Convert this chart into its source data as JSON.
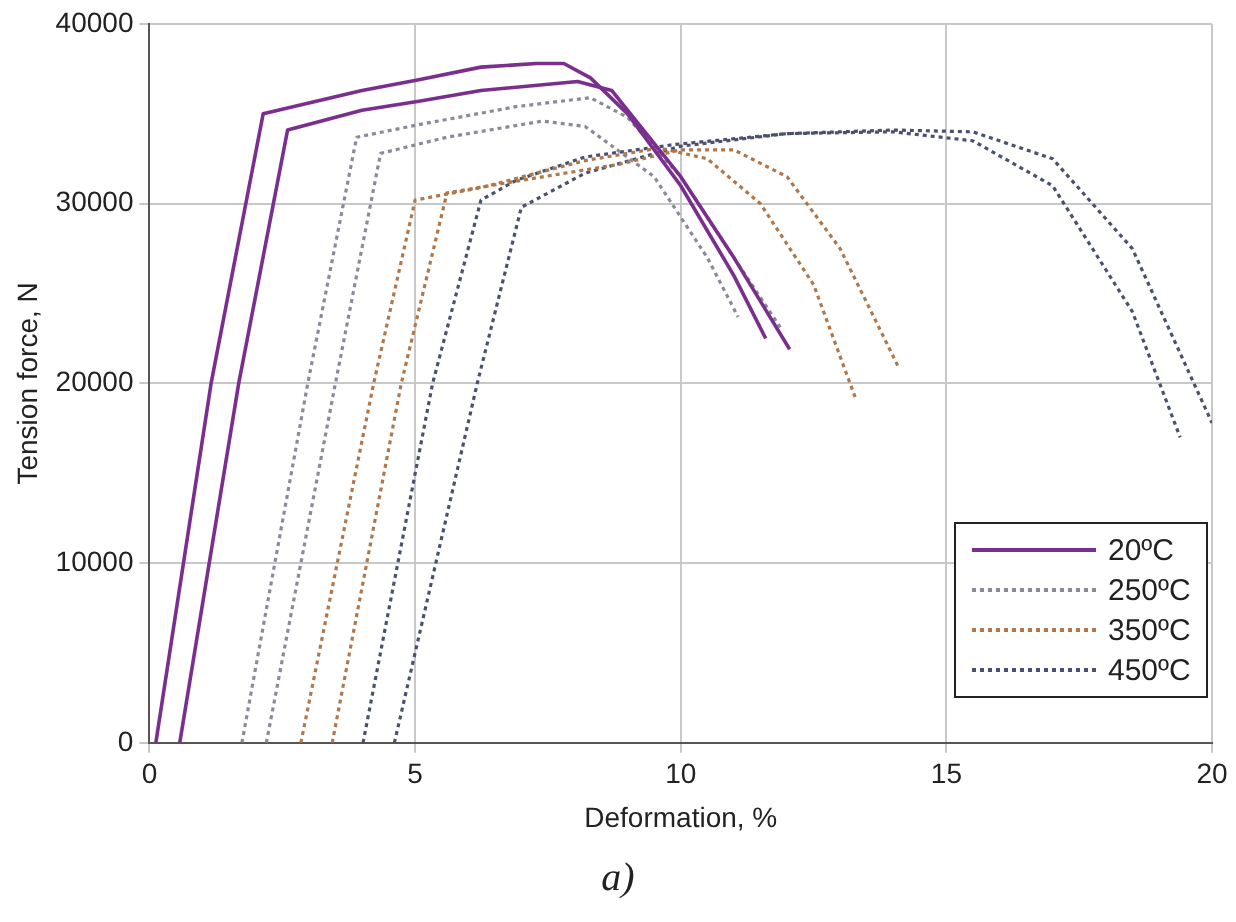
{
  "chart_data": {
    "type": "line",
    "xlabel": "Deformation, %",
    "ylabel": "Tension force, N",
    "annotations": [
      "a)"
    ],
    "xlim": [
      0,
      20
    ],
    "xticks": [
      0,
      5,
      10,
      15,
      20
    ],
    "ylim": [
      0,
      40000
    ],
    "yticks": [
      0,
      10000,
      20000,
      30000,
      40000
    ],
    "grid": true,
    "legend": "bottom right",
    "marker": "none",
    "series": [
      {
        "name": "20ºC",
        "color": "#7a2e8e",
        "line_style": "solid",
        "x": [
          0.12,
          1.16,
          2.14,
          4.0,
          5.07,
          6.24,
          7.28,
          7.8,
          8.3,
          9,
          10,
          11,
          11.6
        ],
        "values": [
          0,
          20000,
          35000,
          36300,
          36900,
          37600,
          37800,
          37800,
          37000,
          35000,
          31000,
          26000,
          22500
        ]
      },
      {
        "color": "#7a2e8e",
        "line_style": "solid",
        "x": [
          0.57,
          1.68,
          2.6,
          4.0,
          5.07,
          6.24,
          8.06,
          8.7,
          10,
          11,
          12.05
        ],
        "values": [
          0,
          20000,
          34100,
          35200,
          35700,
          36300,
          36800,
          36300,
          31500,
          27000,
          21900
        ]
      },
      {
        "name": "250ºC",
        "color": "#8a8a9a",
        "line_style": "dotted",
        "x": [
          1.74,
          2.98,
          3.9,
          5.07,
          6.9,
          8.3,
          9,
          10,
          11,
          11.9
        ],
        "values": [
          0,
          20000,
          33700,
          34400,
          35400,
          35900,
          34800,
          31500,
          27000,
          23000
        ]
      },
      {
        "color": "#8a8a9a",
        "line_style": "dotted",
        "x": [
          2.2,
          3.5,
          4.35,
          5.6,
          7.4,
          8.2,
          9.5,
          10.5,
          11.08
        ],
        "values": [
          0,
          20000,
          32800,
          33700,
          34600,
          34300,
          31500,
          27000,
          23700
        ]
      },
      {
        "name": "350ºC",
        "color": "#b0784a",
        "line_style": "dotted",
        "x": [
          2.85,
          4.22,
          5.0,
          6.24,
          8.2,
          9.6,
          10.5,
          11.5,
          12.5,
          13.3
        ],
        "values": [
          0,
          20000,
          30200,
          30900,
          32400,
          33100,
          32500,
          30000,
          25500,
          19100
        ]
      },
      {
        "color": "#b0784a",
        "line_style": "dotted",
        "x": [
          3.44,
          4.74,
          5.6,
          7.0,
          8.85,
          10,
          11,
          12,
          13,
          14.1
        ],
        "values": [
          0,
          20000,
          30600,
          31300,
          32200,
          33000,
          33000,
          31500,
          27500,
          20900
        ]
      },
      {
        "name": "450ºC",
        "color": "#4a5070",
        "line_style": "dotted",
        "x": [
          4.02,
          5.33,
          6.24,
          6.9,
          8.2,
          9.9,
          12,
          14,
          15.5,
          17,
          18.5,
          19.4
        ],
        "values": [
          0,
          20000,
          30200,
          31300,
          32600,
          33300,
          33900,
          34000,
          33500,
          31000,
          24000,
          17000
        ]
      },
      {
        "color": "#4a5070",
        "line_style": "dotted",
        "x": [
          4.61,
          6.17,
          7.0,
          8.2,
          10,
          12,
          14,
          15.5,
          17,
          18.5,
          20
        ],
        "values": [
          0,
          20000,
          29800,
          31700,
          33200,
          33900,
          34100,
          34000,
          32500,
          27500,
          17800
        ]
      }
    ]
  }
}
